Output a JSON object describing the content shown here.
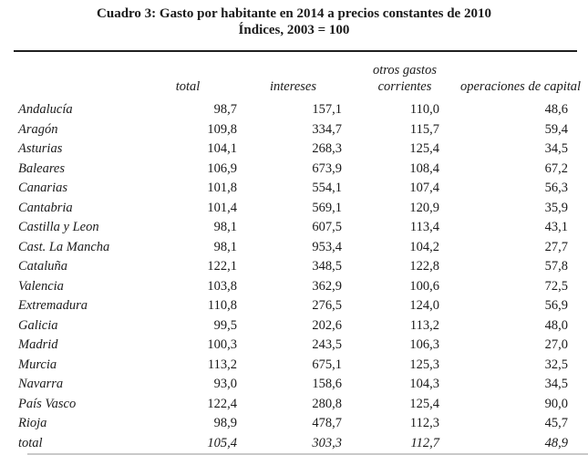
{
  "title": {
    "line1": "Cuadro 3: Gasto por habitante en 2014 a precios constantes de 2010",
    "line2": "Índices, 2003 = 100"
  },
  "table": {
    "columns": [
      "total",
      "intereses",
      "otros gastos corrientes",
      "operaciones de capital"
    ],
    "rows": [
      {
        "region": "Andalucía",
        "values": [
          "98,7",
          "157,1",
          "110,0",
          "48,6"
        ]
      },
      {
        "region": "Aragón",
        "values": [
          "109,8",
          "334,7",
          "115,7",
          "59,4"
        ]
      },
      {
        "region": "Asturias",
        "values": [
          "104,1",
          "268,3",
          "125,4",
          "34,5"
        ]
      },
      {
        "region": "Baleares",
        "values": [
          "106,9",
          "673,9",
          "108,4",
          "67,2"
        ]
      },
      {
        "region": "Canarias",
        "values": [
          "101,8",
          "554,1",
          "107,4",
          "56,3"
        ]
      },
      {
        "region": "Cantabria",
        "values": [
          "101,4",
          "569,1",
          "120,9",
          "35,9"
        ]
      },
      {
        "region": "Castilla y Leon",
        "values": [
          "98,1",
          "607,5",
          "113,4",
          "43,1"
        ]
      },
      {
        "region": "Cast. La Mancha",
        "values": [
          "98,1",
          "953,4",
          "104,2",
          "27,7"
        ]
      },
      {
        "region": "Cataluña",
        "values": [
          "122,1",
          "348,5",
          "122,8",
          "57,8"
        ]
      },
      {
        "region": "Valencia",
        "values": [
          "103,8",
          "362,9",
          "100,6",
          "72,5"
        ]
      },
      {
        "region": "Extremadura",
        "values": [
          "110,8",
          "276,5",
          "124,0",
          "56,9"
        ]
      },
      {
        "region": "Galicia",
        "values": [
          "99,5",
          "202,6",
          "113,2",
          "48,0"
        ]
      },
      {
        "region": "Madrid",
        "values": [
          "100,3",
          "243,5",
          "106,3",
          "27,0"
        ]
      },
      {
        "region": "Murcia",
        "values": [
          "113,2",
          "675,1",
          "125,3",
          "32,5"
        ]
      },
      {
        "region": "Navarra",
        "values": [
          "93,0",
          "158,6",
          "104,3",
          "34,5"
        ]
      },
      {
        "region": "País Vasco",
        "values": [
          "122,4",
          "280,8",
          "125,4",
          "90,0"
        ]
      },
      {
        "region": "Rioja",
        "values": [
          "98,9",
          "478,7",
          "112,3",
          "45,7"
        ]
      },
      {
        "region": "total",
        "values": [
          "105,4",
          "303,3",
          "112,7",
          "48,9"
        ],
        "is_total": true
      }
    ]
  },
  "colors": {
    "text": "#1a1a1a",
    "top_rule": "#1f1f1f",
    "bottom_rule": "#c9c9c9",
    "background": "#ffffff"
  }
}
